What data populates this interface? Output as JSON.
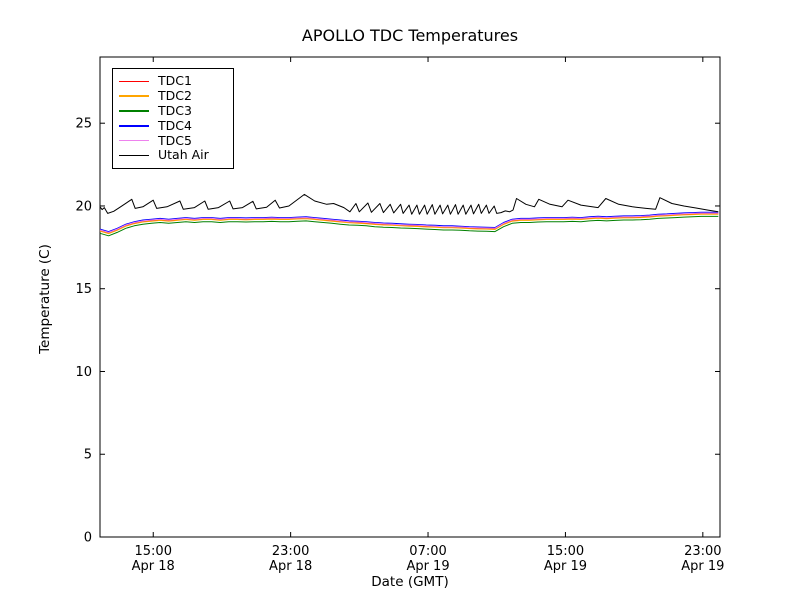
{
  "figure": {
    "title": "APOLLO TDC Temperatures",
    "xlabel": "Date (GMT)",
    "ylabel": "Temperature (C)"
  },
  "chart_data": {
    "type": "line",
    "title": "APOLLO TDC Temperatures",
    "xlabel": "Date (GMT)",
    "ylabel": "Temperature (C)",
    "x_unit": "hours since Apr 18 12:00 GMT",
    "xlim": [
      0,
      36.1
    ],
    "ylim": [
      0,
      29
    ],
    "yticks": [
      0,
      5,
      10,
      15,
      20,
      25
    ],
    "xticks": [
      {
        "value": 3.1,
        "time": "15:00",
        "date": "Apr 18"
      },
      {
        "value": 11.1,
        "time": "23:00",
        "date": "Apr 18"
      },
      {
        "value": 19.1,
        "time": "07:00",
        "date": "Apr 19"
      },
      {
        "value": 27.1,
        "time": "15:00",
        "date": "Apr 19"
      },
      {
        "value": 35.1,
        "time": "23:00",
        "date": "Apr 19"
      }
    ],
    "grid": false,
    "legend_position": "upper left",
    "x_hours": [
      0,
      0.5,
      1,
      1.5,
      2,
      2.5,
      3,
      3.5,
      4,
      4.5,
      5,
      5.5,
      6,
      6.5,
      7,
      7.5,
      8,
      8.5,
      9,
      9.5,
      10,
      10.5,
      11,
      11.5,
      12,
      12.5,
      13,
      13.5,
      14,
      14.5,
      15,
      15.5,
      16,
      16.5,
      17,
      17.5,
      18,
      18.5,
      19,
      19.5,
      20,
      20.5,
      21,
      21.5,
      22,
      22.5,
      23,
      23.5,
      24,
      24.5,
      25,
      25.5,
      26,
      26.5,
      27,
      27.5,
      28,
      28.5,
      29,
      29.5,
      30,
      30.5,
      31,
      31.5,
      32,
      32.5,
      33,
      33.5,
      34,
      34.5,
      35,
      35.5,
      36
    ],
    "series": [
      {
        "name": "TDC1",
        "color": "#ff0000",
        "values": [
          18.51,
          18.36,
          18.56,
          18.81,
          18.96,
          19.06,
          19.11,
          19.16,
          19.11,
          19.16,
          19.21,
          19.16,
          19.21,
          19.21,
          19.16,
          19.21,
          19.21,
          19.19,
          19.21,
          19.21,
          19.23,
          19.21,
          19.21,
          19.24,
          19.26,
          19.21,
          19.16,
          19.11,
          19.06,
          19.01,
          18.99,
          18.96,
          18.91,
          18.88,
          18.86,
          18.83,
          18.81,
          18.79,
          18.76,
          18.74,
          18.71,
          18.71,
          18.69,
          18.66,
          18.64,
          18.63,
          18.61,
          18.91,
          19.11,
          19.16,
          19.16,
          19.19,
          19.21,
          19.21,
          19.21,
          19.23,
          19.21,
          19.26,
          19.29,
          19.26,
          19.29,
          19.31,
          19.31,
          19.33,
          19.36,
          19.41,
          19.43,
          19.46,
          19.49,
          19.51,
          19.53,
          19.53,
          19.53
        ]
      },
      {
        "name": "TDC2",
        "color": "#ffa500",
        "values": [
          18.48,
          18.33,
          18.53,
          18.78,
          18.93,
          19.03,
          19.08,
          19.13,
          19.08,
          19.13,
          19.18,
          19.13,
          19.18,
          19.18,
          19.13,
          19.18,
          19.18,
          19.16,
          19.18,
          19.18,
          19.2,
          19.18,
          19.18,
          19.21,
          19.23,
          19.18,
          19.13,
          19.08,
          19.03,
          18.98,
          18.96,
          18.93,
          18.88,
          18.85,
          18.83,
          18.8,
          18.78,
          18.76,
          18.73,
          18.71,
          18.68,
          18.68,
          18.66,
          18.63,
          18.61,
          18.6,
          18.58,
          18.88,
          19.08,
          19.13,
          19.13,
          19.16,
          19.18,
          19.18,
          19.18,
          19.2,
          19.18,
          19.23,
          19.26,
          19.23,
          19.26,
          19.28,
          19.28,
          19.3,
          19.33,
          19.38,
          19.4,
          19.43,
          19.46,
          19.48,
          19.5,
          19.5,
          19.5
        ]
      },
      {
        "name": "TDC3",
        "color": "#008000",
        "values": [
          18.35,
          18.2,
          18.4,
          18.65,
          18.8,
          18.9,
          18.95,
          19.0,
          18.95,
          19.0,
          19.05,
          19.0,
          19.05,
          19.05,
          19.0,
          19.05,
          19.05,
          19.03,
          19.05,
          19.05,
          19.07,
          19.05,
          19.05,
          19.08,
          19.1,
          19.05,
          19.0,
          18.95,
          18.9,
          18.85,
          18.83,
          18.8,
          18.75,
          18.72,
          18.7,
          18.67,
          18.65,
          18.63,
          18.6,
          18.58,
          18.55,
          18.55,
          18.53,
          18.5,
          18.48,
          18.47,
          18.45,
          18.75,
          18.95,
          19.0,
          19.0,
          19.03,
          19.05,
          19.05,
          19.05,
          19.07,
          19.05,
          19.1,
          19.13,
          19.1,
          19.13,
          19.15,
          19.15,
          19.17,
          19.2,
          19.25,
          19.27,
          19.3,
          19.33,
          19.35,
          19.37,
          19.37,
          19.37
        ]
      },
      {
        "name": "TDC4",
        "color": "#0000ff",
        "values": [
          18.6,
          18.45,
          18.65,
          18.9,
          19.05,
          19.15,
          19.2,
          19.25,
          19.2,
          19.25,
          19.3,
          19.25,
          19.3,
          19.3,
          19.25,
          19.3,
          19.3,
          19.28,
          19.3,
          19.3,
          19.32,
          19.3,
          19.3,
          19.33,
          19.35,
          19.3,
          19.25,
          19.2,
          19.15,
          19.1,
          19.08,
          19.05,
          19.0,
          18.97,
          18.95,
          18.92,
          18.9,
          18.88,
          18.85,
          18.83,
          18.8,
          18.8,
          18.78,
          18.75,
          18.73,
          18.72,
          18.7,
          19.0,
          19.2,
          19.25,
          19.25,
          19.28,
          19.3,
          19.3,
          19.3,
          19.32,
          19.3,
          19.35,
          19.38,
          19.35,
          19.38,
          19.4,
          19.4,
          19.42,
          19.45,
          19.5,
          19.52,
          19.55,
          19.58,
          19.6,
          19.62,
          19.62,
          19.62
        ]
      },
      {
        "name": "TDC5",
        "color": "#ee82ee",
        "values": [
          18.55,
          18.4,
          18.6,
          18.85,
          19.0,
          19.1,
          19.15,
          19.2,
          19.15,
          19.2,
          19.25,
          19.2,
          19.25,
          19.25,
          19.2,
          19.25,
          19.25,
          19.23,
          19.25,
          19.25,
          19.27,
          19.25,
          19.25,
          19.28,
          19.3,
          19.25,
          19.2,
          19.15,
          19.1,
          19.05,
          19.03,
          19.0,
          18.95,
          18.92,
          18.9,
          18.87,
          18.85,
          18.83,
          18.8,
          18.78,
          18.75,
          18.75,
          18.73,
          18.7,
          18.68,
          18.67,
          18.65,
          18.95,
          19.15,
          19.2,
          19.2,
          19.23,
          19.25,
          19.25,
          19.25,
          19.27,
          19.25,
          19.3,
          19.33,
          19.3,
          19.33,
          19.35,
          19.35,
          19.37,
          19.4,
          19.45,
          19.47,
          19.5,
          19.53,
          19.55,
          19.57,
          19.57,
          19.57
        ]
      },
      {
        "name": "Utah Air",
        "color": "#000000",
        "x": [
          0,
          0.12,
          0.25,
          0.45,
          0.8,
          1.2,
          1.85,
          2.05,
          2.5,
          3.1,
          3.3,
          3.9,
          4.65,
          4.85,
          5.5,
          6.1,
          6.3,
          6.9,
          7.55,
          7.75,
          8.3,
          8.9,
          9.1,
          9.7,
          10.2,
          10.45,
          11.0,
          11.9,
          12.5,
          13.2,
          13.6,
          14.2,
          14.55,
          14.9,
          15.1,
          15.6,
          15.8,
          16.3,
          16.5,
          16.9,
          17.1,
          17.5,
          17.65,
          18.0,
          18.15,
          18.45,
          18.6,
          18.9,
          19.05,
          19.35,
          19.5,
          19.8,
          19.95,
          20.25,
          20.4,
          20.7,
          20.85,
          21.15,
          21.3,
          21.6,
          21.75,
          22.05,
          22.2,
          22.5,
          22.65,
          22.95,
          23.1,
          23.35,
          23.6,
          23.85,
          24.05,
          24.25,
          24.8,
          25.3,
          25.55,
          26.2,
          26.9,
          27.25,
          28.0,
          29.0,
          29.45,
          30.2,
          31.0,
          31.8,
          32.35,
          32.6,
          33.3,
          34.0,
          34.7,
          35.4,
          36.0
        ],
        "values": [
          19.95,
          19.78,
          19.9,
          19.55,
          19.68,
          19.95,
          20.4,
          19.85,
          19.95,
          20.35,
          19.85,
          19.95,
          20.3,
          19.8,
          19.9,
          20.3,
          19.8,
          19.9,
          20.3,
          19.82,
          19.9,
          20.28,
          19.82,
          19.92,
          20.35,
          19.88,
          20.0,
          20.7,
          20.3,
          20.1,
          20.15,
          19.9,
          19.65,
          20.15,
          19.65,
          20.18,
          19.62,
          20.15,
          19.6,
          20.1,
          19.58,
          20.1,
          19.55,
          20.05,
          19.5,
          20.05,
          19.5,
          20.05,
          19.5,
          20.08,
          19.5,
          20.05,
          19.52,
          20.05,
          19.5,
          20.08,
          19.5,
          20.05,
          19.5,
          20.05,
          19.52,
          20.1,
          19.55,
          20.05,
          19.55,
          20.0,
          19.55,
          19.6,
          19.7,
          19.65,
          19.75,
          20.45,
          20.1,
          19.95,
          20.4,
          20.1,
          19.95,
          20.35,
          20.05,
          19.9,
          20.45,
          20.1,
          19.95,
          19.85,
          19.8,
          20.5,
          20.15,
          20.0,
          19.88,
          19.75,
          19.65
        ]
      }
    ],
    "legend_entries": [
      "TDC1",
      "TDC2",
      "TDC3",
      "TDC4",
      "TDC5",
      "Utah Air"
    ]
  }
}
